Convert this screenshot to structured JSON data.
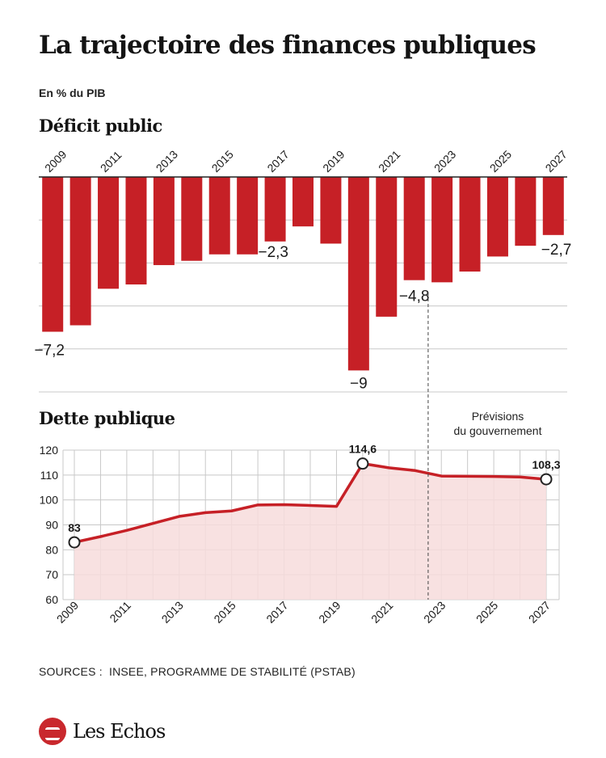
{
  "title": "La trajectoire des finances publiques",
  "unit_label": "En % du PIB",
  "deficit_title": "Déficit public",
  "debt_title": "Dette publique",
  "forecast_note": [
    "Prévisions",
    "du gouvernement"
  ],
  "sources": "SOURCES :  INSEE, PROGRAMME DE STABILITÉ (PSTAB)",
  "brand": "Les Echos",
  "colors": {
    "bar": "#c62026",
    "line": "#c62026",
    "area": "#f7dcdc",
    "grid": "#c8c8c8",
    "text": "#1a1a1a"
  },
  "chart_data": [
    {
      "type": "bar",
      "title": "Déficit public",
      "categories": [
        "2009",
        "2010",
        "2011",
        "2012",
        "2013",
        "2014",
        "2015",
        "2016",
        "2017",
        "2018",
        "2019",
        "2020",
        "2021",
        "2022",
        "2023",
        "2024",
        "2025",
        "2026",
        "2027"
      ],
      "x_tick_labels": [
        "2009",
        "2011",
        "2013",
        "2015",
        "2017",
        "2019",
        "2021",
        "2023",
        "2025",
        "2027"
      ],
      "values": [
        -7.2,
        -6.9,
        -5.2,
        -5.0,
        -4.1,
        -3.9,
        -3.6,
        -3.6,
        -3.0,
        -2.3,
        -3.1,
        -9.0,
        -6.5,
        -4.8,
        -4.9,
        -4.4,
        -3.7,
        -3.2,
        -2.7
      ],
      "data_labels": [
        {
          "year": "2009",
          "text": "−7,2"
        },
        {
          "year": "2018",
          "text": "−2,3"
        },
        {
          "year": "2020",
          "text": "−9"
        },
        {
          "year": "2022",
          "text": "−4,8"
        },
        {
          "year": "2027",
          "text": "−2,7"
        }
      ],
      "ylim": [
        -10,
        0
      ],
      "grid": true,
      "forecast_from": "2022"
    },
    {
      "type": "area",
      "title": "Dette publique",
      "x": [
        2009,
        2010,
        2011,
        2012,
        2013,
        2014,
        2015,
        2016,
        2017,
        2018,
        2019,
        2020,
        2021,
        2022,
        2023,
        2024,
        2025,
        2026,
        2027
      ],
      "values": [
        83,
        85.3,
        87.8,
        90.6,
        93.4,
        94.9,
        95.6,
        98.0,
        98.1,
        97.8,
        97.4,
        114.6,
        112.9,
        111.8,
        109.6,
        109.5,
        109.4,
        109.2,
        108.3
      ],
      "x_tick_labels": [
        "2009",
        "2011",
        "2013",
        "2015",
        "2017",
        "2019",
        "2021",
        "2023",
        "2025",
        "2027"
      ],
      "y_ticks": [
        "60",
        "70",
        "80",
        "90",
        "100",
        "110",
        "120"
      ],
      "ylim": [
        60,
        120
      ],
      "grid": true,
      "markers": [
        {
          "year": 2009,
          "text": "83"
        },
        {
          "year": 2020,
          "text": "114,6"
        },
        {
          "year": 2027,
          "text": "108,3"
        }
      ]
    }
  ]
}
